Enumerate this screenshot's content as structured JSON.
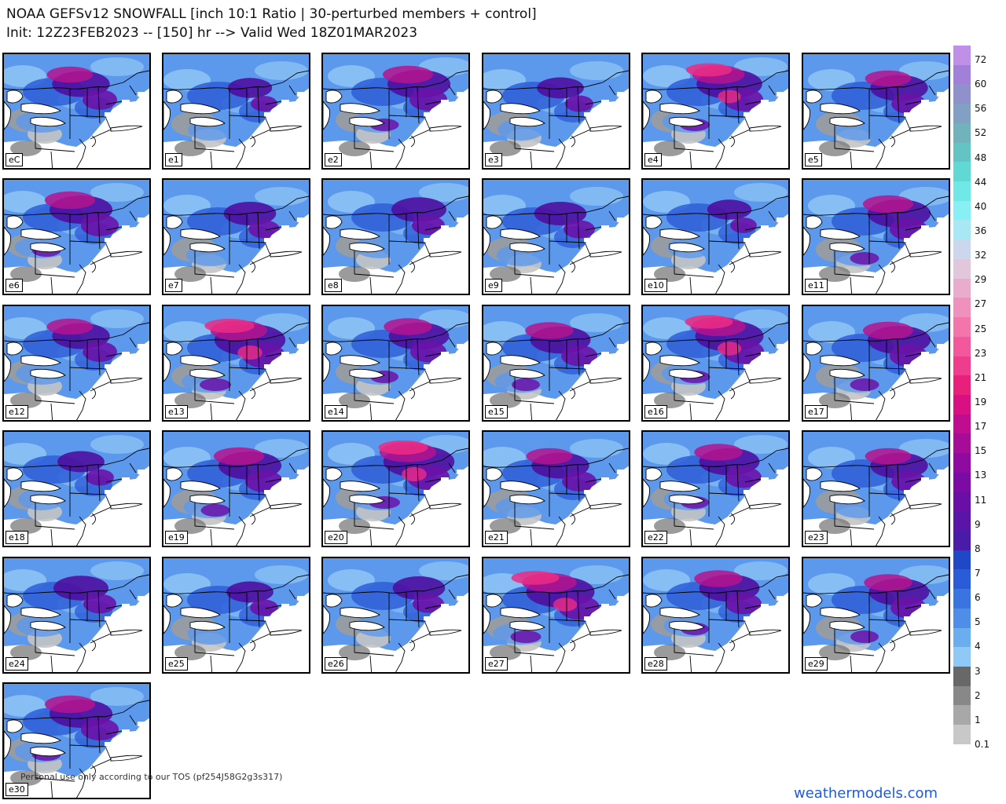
{
  "header": {
    "title_line1": "NOAA GEFSv12 SNOWFALL [inch 10:1 Ratio | 30-perturbed members + control]",
    "title_line2": "Init: 12Z23FEB2023 -- [150] hr --> Valid Wed 18Z01MAR2023"
  },
  "panels": [
    {
      "label": "eC",
      "intensity": 0.55,
      "variant": 0
    },
    {
      "label": "e1",
      "intensity": 0.3,
      "variant": 1
    },
    {
      "label": "e2",
      "intensity": 0.65,
      "variant": 2
    },
    {
      "label": "e3",
      "intensity": 0.35,
      "variant": 3
    },
    {
      "label": "e4",
      "intensity": 0.7,
      "variant": 4
    },
    {
      "label": "e5",
      "intensity": 0.55,
      "variant": 5
    },
    {
      "label": "e6",
      "intensity": 0.65,
      "variant": 0
    },
    {
      "label": "e7",
      "intensity": 0.45,
      "variant": 1
    },
    {
      "label": "e8",
      "intensity": 0.5,
      "variant": 2
    },
    {
      "label": "e9",
      "intensity": 0.45,
      "variant": 3
    },
    {
      "label": "e10",
      "intensity": 0.3,
      "variant": 4
    },
    {
      "label": "e11",
      "intensity": 0.65,
      "variant": 5
    },
    {
      "label": "e12",
      "intensity": 0.55,
      "variant": 0
    },
    {
      "label": "e13",
      "intensity": 0.8,
      "variant": 1
    },
    {
      "label": "e14",
      "intensity": 0.6,
      "variant": 2
    },
    {
      "label": "e15",
      "intensity": 0.6,
      "variant": 3
    },
    {
      "label": "e16",
      "intensity": 0.75,
      "variant": 4
    },
    {
      "label": "e17",
      "intensity": 0.65,
      "variant": 5
    },
    {
      "label": "e18",
      "intensity": 0.35,
      "variant": 0
    },
    {
      "label": "e19",
      "intensity": 0.65,
      "variant": 1
    },
    {
      "label": "e20",
      "intensity": 0.8,
      "variant": 2
    },
    {
      "label": "e21",
      "intensity": 0.55,
      "variant": 3
    },
    {
      "label": "e22",
      "intensity": 0.6,
      "variant": 4
    },
    {
      "label": "e23",
      "intensity": 0.55,
      "variant": 5
    },
    {
      "label": "e24",
      "intensity": 0.5,
      "variant": 0
    },
    {
      "label": "e25",
      "intensity": 0.35,
      "variant": 1
    },
    {
      "label": "e26",
      "intensity": 0.45,
      "variant": 2
    },
    {
      "label": "e27",
      "intensity": 0.75,
      "variant": 3
    },
    {
      "label": "e28",
      "intensity": 0.6,
      "variant": 4
    },
    {
      "label": "e29",
      "intensity": 0.6,
      "variant": 5
    },
    {
      "label": "e30",
      "intensity": 0.65,
      "variant": 0
    }
  ],
  "colorbar": {
    "colors": [
      "#c8c8c8",
      "#a8a8a8",
      "#888888",
      "#686868",
      "#90c8f8",
      "#6aaef0",
      "#4f8ee8",
      "#3a74e0",
      "#2a5cd8",
      "#1e48c8",
      "#4a1aa8",
      "#5a14a8",
      "#6a0ea8",
      "#7c0aa4",
      "#8e0aa0",
      "#a60c98",
      "#c00c8e",
      "#d81084",
      "#e8207c",
      "#f03c8c",
      "#f4589c",
      "#f474ac",
      "#f090bc",
      "#eaaccc",
      "#e2c6dc",
      "#ccd6ec",
      "#a8e8f4",
      "#88f0f4",
      "#70e8e8",
      "#60d8d4",
      "#64c4c4",
      "#72b2bc",
      "#82a0c4",
      "#9090cc",
      "#a080d8",
      "#c090e8"
    ],
    "tick_labels": [
      "72",
      "60",
      "56",
      "52",
      "48",
      "44",
      "40",
      "36",
      "32",
      "29",
      "27",
      "25",
      "23",
      "21",
      "19",
      "17",
      "15",
      "13",
      "11",
      "9",
      "8",
      "7",
      "6",
      "5",
      "4",
      "3",
      "2",
      "1",
      "0.1"
    ]
  },
  "footer": {
    "disclaimer": "Personal use only according to our TOS (pf254J58G2g3s317)",
    "brand": "weathermodels.com"
  }
}
